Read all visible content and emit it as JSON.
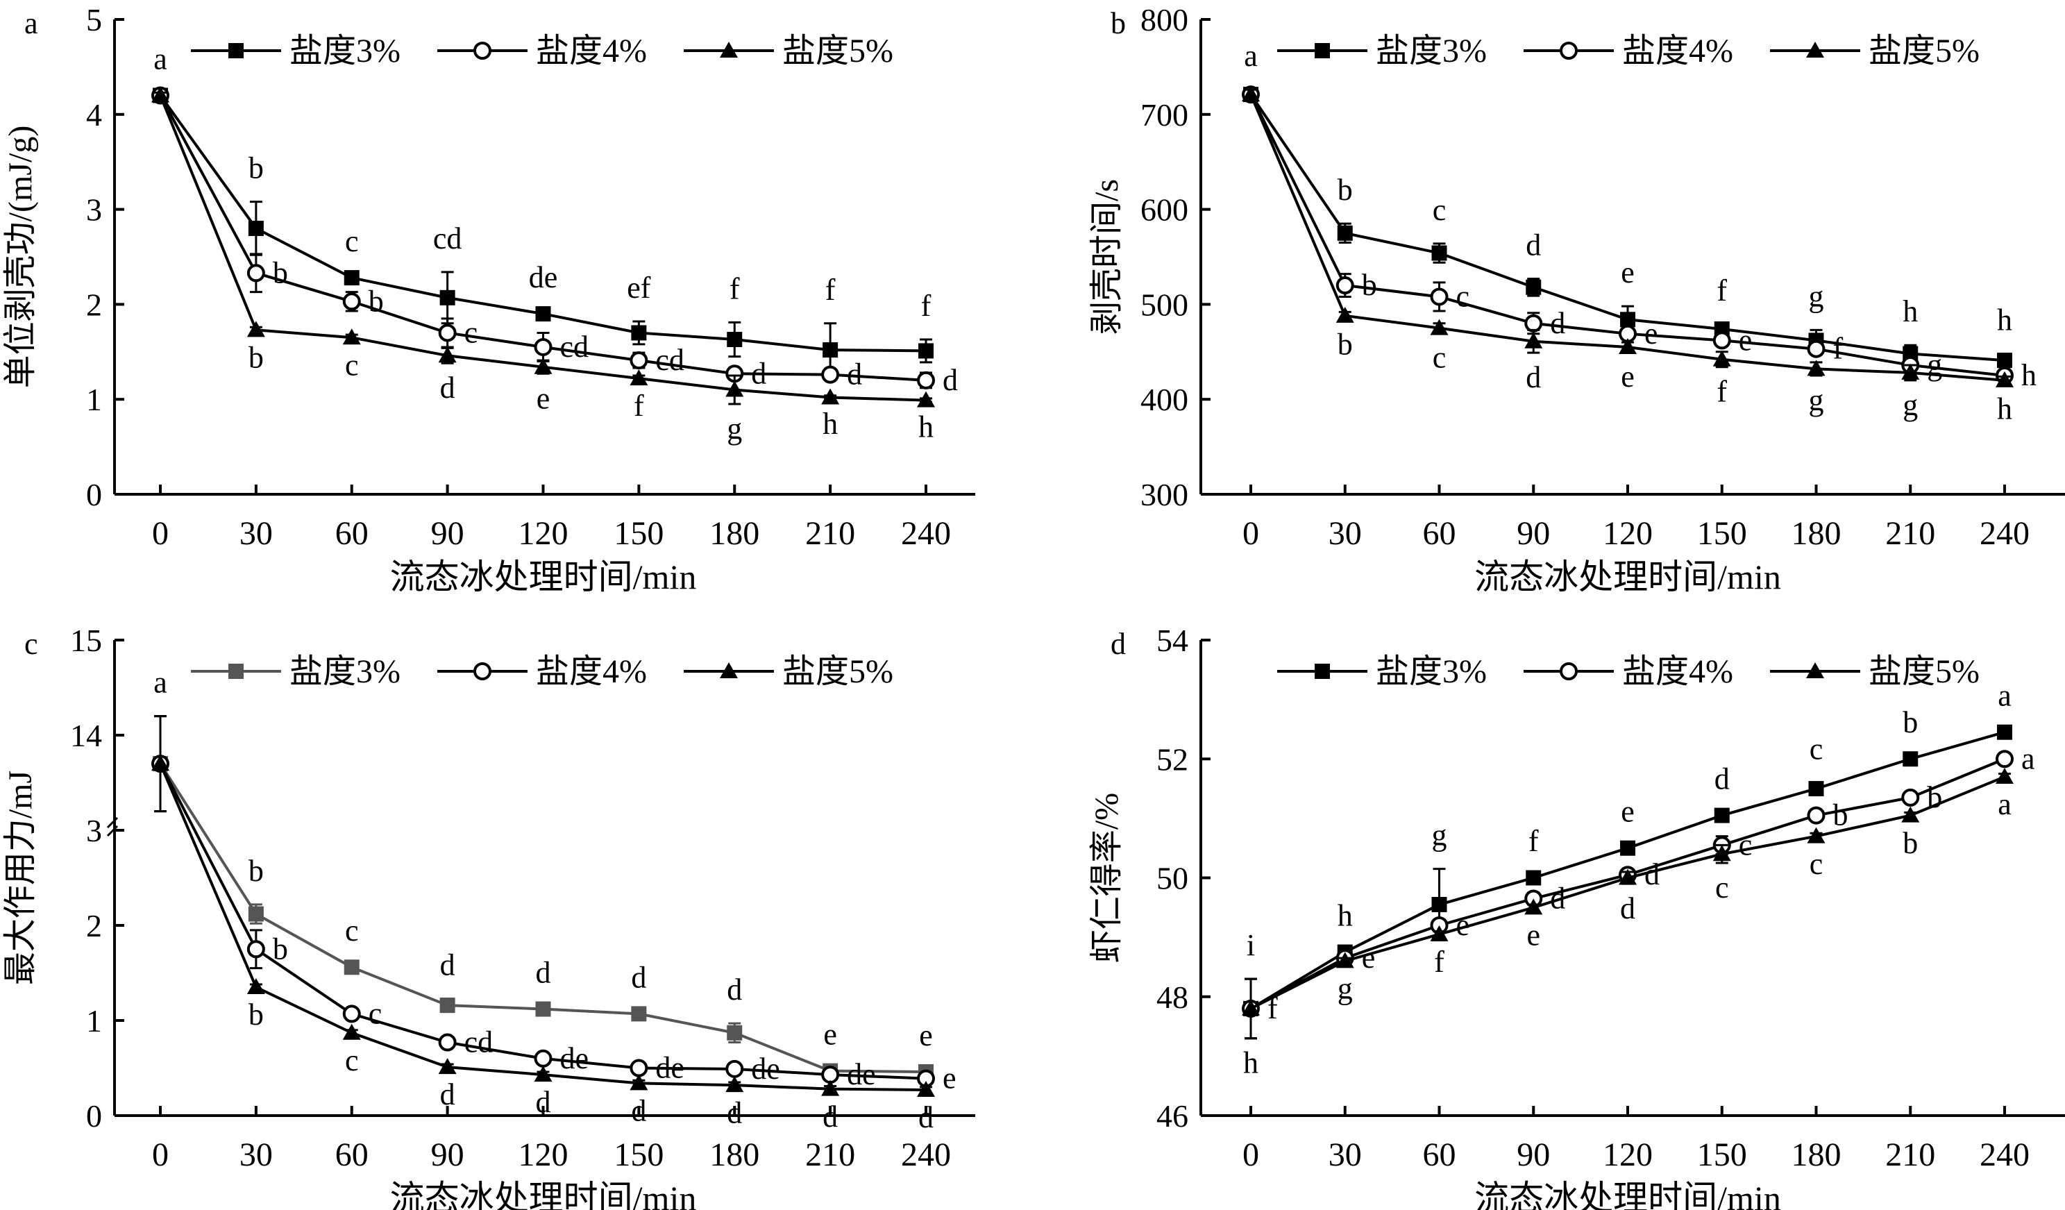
{
  "chart_data": [
    {
      "panel_label": "a",
      "type": "line",
      "ylabel": "单位剥壳功/(mJ/g)",
      "xlabel": "流态冰处理时间/min",
      "x": [
        0,
        30,
        60,
        90,
        120,
        150,
        180,
        210,
        240
      ],
      "ylim": [
        0,
        5
      ],
      "yticks": [
        0,
        1,
        2,
        3,
        4,
        5
      ],
      "legend_position": "top",
      "series": [
        {
          "name": "盐度3%",
          "marker": "square",
          "color": "#000000",
          "values": [
            4.2,
            2.8,
            2.28,
            2.07,
            1.9,
            1.7,
            1.63,
            1.52,
            1.51
          ],
          "errors": [
            0.03,
            0.28,
            0.03,
            0.27,
            0.03,
            0.12,
            0.18,
            0.28,
            0.12
          ],
          "letters": [
            "a",
            "b",
            "c",
            "cd",
            "de",
            "ef",
            "f",
            "f",
            "f"
          ]
        },
        {
          "name": "盐度4%",
          "marker": "circle",
          "color": "#000000",
          "values": [
            4.2,
            2.33,
            2.03,
            1.7,
            1.55,
            1.41,
            1.27,
            1.26,
            1.2
          ],
          "errors": [
            0.03,
            0.2,
            0.1,
            0.15,
            0.15,
            0.08,
            0.06,
            0.05,
            0.08
          ],
          "letters": [
            "",
            "b",
            "b",
            "c",
            "cd",
            "cd",
            "d",
            "d",
            "d"
          ]
        },
        {
          "name": "盐度5%",
          "marker": "triangle",
          "color": "#000000",
          "values": [
            4.2,
            1.73,
            1.65,
            1.46,
            1.34,
            1.22,
            1.1,
            1.02,
            0.99
          ],
          "errors": [
            0.03,
            0.03,
            0.03,
            0.08,
            0.07,
            0.03,
            0.15,
            0.02,
            0.02
          ],
          "letters": [
            "",
            "b",
            "c",
            "d",
            "e",
            "f",
            "g",
            "h",
            "h"
          ]
        }
      ]
    },
    {
      "panel_label": "b",
      "type": "line",
      "ylabel": "剥壳时间/s",
      "xlabel": "流态冰处理时间/min",
      "x": [
        0,
        30,
        60,
        90,
        120,
        150,
        180,
        210,
        240
      ],
      "ylim": [
        300,
        800
      ],
      "yticks": [
        300,
        400,
        500,
        600,
        700,
        800
      ],
      "legend_position": "top",
      "series": [
        {
          "name": "盐度3%",
          "marker": "square",
          "color": "#000000",
          "values": [
            721,
            575,
            554,
            518,
            484,
            474,
            462,
            448,
            441
          ],
          "errors": [
            5,
            10,
            10,
            9,
            14,
            5,
            11,
            9,
            7
          ],
          "letters": [
            "a",
            "b",
            "c",
            "d",
            "e",
            "f",
            "g",
            "h",
            "h"
          ]
        },
        {
          "name": "盐度4%",
          "marker": "circle",
          "color": "#000000",
          "values": [
            721,
            520,
            508,
            480,
            469,
            462,
            453,
            436,
            425
          ],
          "errors": [
            5,
            12,
            15,
            11,
            5,
            5,
            5,
            5,
            4
          ],
          "letters": [
            "",
            "b",
            "c",
            "d",
            "e",
            "e",
            "f",
            "g",
            "h"
          ]
        },
        {
          "name": "盐度5%",
          "marker": "triangle",
          "color": "#000000",
          "values": [
            721,
            488,
            475,
            461,
            455,
            442,
            432,
            428,
            420
          ],
          "errors": [
            5,
            4,
            5,
            12,
            5,
            8,
            7,
            8,
            4
          ],
          "letters": [
            "",
            "b",
            "c",
            "d",
            "e",
            "f",
            "g",
            "g",
            "h"
          ]
        }
      ]
    },
    {
      "panel_label": "c",
      "type": "line",
      "ylabel": "最大作用力/mJ",
      "xlabel": "流态冰处理时间/min",
      "x": [
        0,
        30,
        60,
        90,
        120,
        150,
        180,
        210,
        240
      ],
      "ylim": [
        0,
        15
      ],
      "y_axis_break": [
        3,
        13
      ],
      "yticks": [
        0,
        1,
        2,
        3,
        14,
        15
      ],
      "legend_position": "top",
      "series": [
        {
          "name": "盐度3%",
          "marker": "square",
          "color": "#555555",
          "values": [
            13.7,
            2.12,
            1.56,
            1.16,
            1.12,
            1.07,
            0.87,
            0.47,
            0.46
          ],
          "errors": [
            0.5,
            0.1,
            0.03,
            0.07,
            0.03,
            0.03,
            0.1,
            0.03,
            0.03
          ],
          "letters": [
            "a",
            "b",
            "c",
            "d",
            "d",
            "d",
            "d",
            "e",
            "e"
          ]
        },
        {
          "name": "盐度4%",
          "marker": "circle",
          "color": "#000000",
          "values": [
            13.7,
            1.75,
            1.07,
            0.77,
            0.6,
            0.5,
            0.49,
            0.43,
            0.39
          ],
          "errors": [
            0.5,
            0.2,
            0.03,
            0.03,
            0.03,
            0.03,
            0.03,
            0.03,
            0.03
          ],
          "letters": [
            "",
            "b",
            "c",
            "cd",
            "de",
            "de",
            "de",
            "de",
            "e"
          ]
        },
        {
          "name": "盐度5%",
          "marker": "triangle",
          "color": "#000000",
          "values": [
            13.7,
            1.35,
            0.87,
            0.51,
            0.43,
            0.34,
            0.32,
            0.28,
            0.27
          ],
          "errors": [
            0.5,
            0.03,
            0.03,
            0.03,
            0.03,
            0.03,
            0.03,
            0.03,
            0.03
          ],
          "letters": [
            "",
            "b",
            "c",
            "d",
            "d",
            "d",
            "d",
            "d",
            "d"
          ]
        }
      ]
    },
    {
      "panel_label": "d",
      "type": "line",
      "ylabel": "虾仁得率/%",
      "xlabel": "流态冰处理时间/min",
      "x": [
        0,
        30,
        60,
        90,
        120,
        150,
        180,
        210,
        240
      ],
      "ylim": [
        46,
        54
      ],
      "yticks": [
        46,
        48,
        50,
        52,
        54
      ],
      "legend_position": "top",
      "series": [
        {
          "name": "盐度3%",
          "marker": "square",
          "color": "#000000",
          "values": [
            47.8,
            48.75,
            49.55,
            50.0,
            50.5,
            51.05,
            51.5,
            52.0,
            52.45
          ],
          "errors": [
            0.5,
            0.05,
            0.6,
            0.05,
            0.05,
            0.05,
            0.1,
            0.05,
            0.05
          ],
          "letters": [
            "i",
            "h",
            "g",
            "f",
            "e",
            "d",
            "c",
            "b",
            "a"
          ]
        },
        {
          "name": "盐度4%",
          "marker": "circle",
          "color": "#000000",
          "values": [
            47.8,
            48.65,
            49.2,
            49.65,
            50.05,
            50.55,
            51.05,
            51.35,
            52.0
          ],
          "errors": [
            0.5,
            0.05,
            0.1,
            0.1,
            0.05,
            0.15,
            0.05,
            0.05,
            0.05
          ],
          "letters": [
            "f",
            "e",
            "e",
            "d",
            "d",
            "c",
            "b",
            "b",
            "a"
          ]
        },
        {
          "name": "盐度5%",
          "marker": "triangle",
          "color": "#000000",
          "values": [
            47.8,
            48.6,
            49.05,
            49.5,
            50.0,
            50.4,
            50.7,
            51.05,
            51.7
          ],
          "errors": [
            0.5,
            0.05,
            0.05,
            0.05,
            0.1,
            0.15,
            0.05,
            0.05,
            0.05
          ],
          "letters": [
            "h",
            "g",
            "f",
            "e",
            "d",
            "c",
            "c",
            "b",
            "a"
          ]
        }
      ]
    }
  ]
}
